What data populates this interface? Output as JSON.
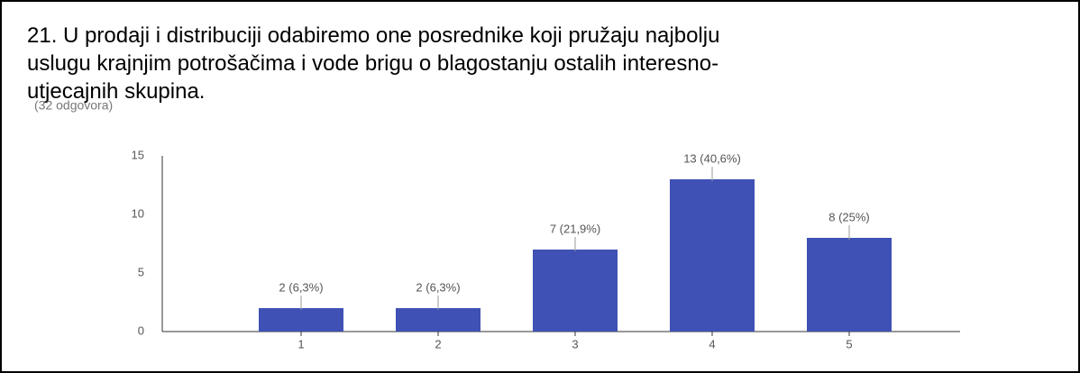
{
  "chart_data": {
    "type": "bar",
    "title_lines": [
      "21. U prodaji i distribuciji odabiremo one posrednike koji pružaju najbolju",
      "uslugu krajnjim potrošačima i vode brigu o blagostanju ostalih interesno-",
      "utjecajnih skupina."
    ],
    "subtitle": "(32 odgovora)",
    "categories": [
      "1",
      "2",
      "3",
      "4",
      "5"
    ],
    "values": [
      2,
      2,
      7,
      13,
      8
    ],
    "value_labels": [
      "2 (6,3%)",
      "2 (6,3%)",
      "7 (21,9%)",
      "13 (40,6%)",
      "8 (25%)"
    ],
    "color": "#3f51b5",
    "ylim": [
      0,
      15
    ],
    "yticks": [
      0,
      5,
      10,
      15
    ],
    "grid": false
  }
}
